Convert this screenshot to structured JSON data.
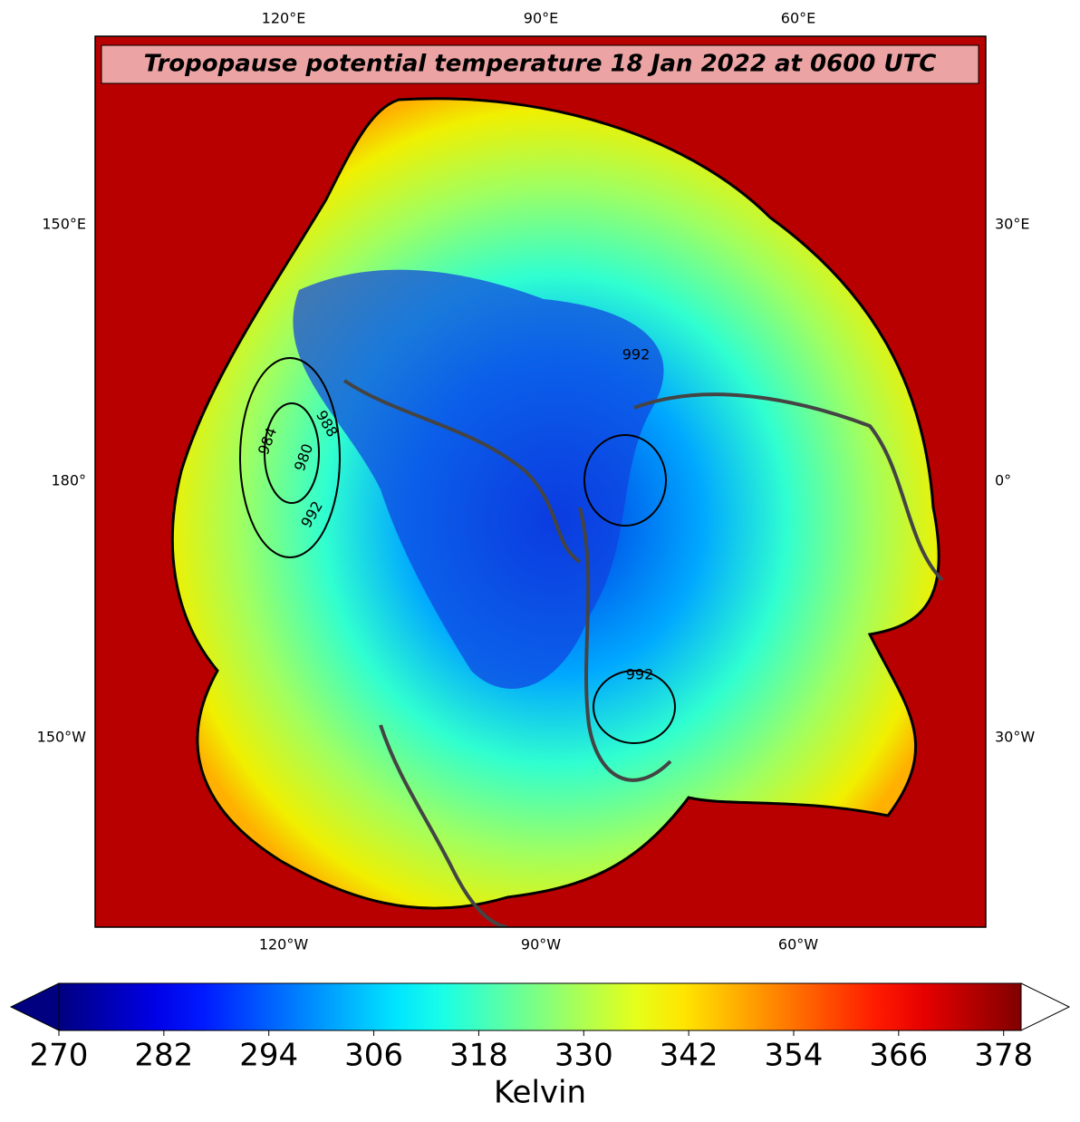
{
  "map": {
    "title": "Tropopause potential temperature 18 Jan 2022 at 0600 UTC",
    "top_labels": [
      "120°E",
      "90°E",
      "60°E"
    ],
    "bottom_labels": [
      "120°W",
      "90°W",
      "60°W"
    ],
    "left_labels": [
      "150°E",
      "180°",
      "150°W"
    ],
    "right_labels": [
      "30°E",
      "0°",
      "30°W"
    ],
    "contour_labels": [
      "984",
      "988",
      "980",
      "992",
      "992",
      "992"
    ]
  },
  "colorbar": {
    "label": "Kelvin",
    "lim": [
      270,
      380
    ],
    "ticks": [
      270,
      282,
      294,
      306,
      318,
      330,
      342,
      354,
      366,
      378
    ],
    "colormap": "jet",
    "extend": "both"
  }
}
